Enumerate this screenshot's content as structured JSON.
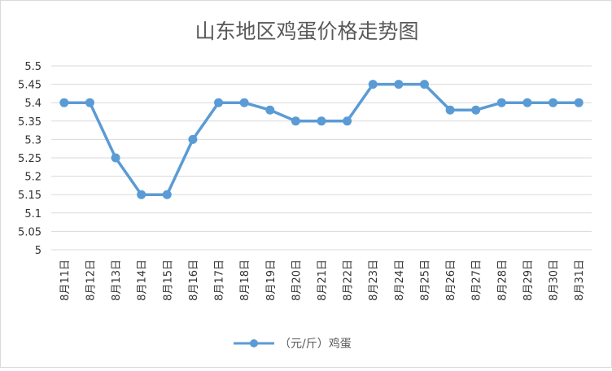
{
  "chart_data": {
    "type": "line",
    "title": "山东地区鸡蛋价格走势图",
    "categories": [
      "8月11日",
      "8月12日",
      "8月13日",
      "8月14日",
      "8月15日",
      "8月16日",
      "8月17日",
      "8月18日",
      "8月19日",
      "8月20日",
      "8月21日",
      "8月22日",
      "8月23日",
      "8月24日",
      "8月25日",
      "8月26日",
      "8月27日",
      "8月28日",
      "8月29日",
      "8月30日",
      "8月31日"
    ],
    "series": [
      {
        "name": "（元/斤）鸡蛋",
        "values": [
          5.4,
          5.4,
          5.25,
          5.15,
          5.15,
          5.3,
          5.4,
          5.4,
          5.38,
          5.35,
          5.35,
          5.35,
          5.45,
          5.45,
          5.45,
          5.38,
          5.38,
          5.4,
          5.4,
          5.4,
          5.4
        ],
        "color": "#5b9bd5"
      }
    ],
    "ylim": [
      5,
      5.5
    ],
    "yticks": [
      "5",
      "5.05",
      "5.1",
      "5.15",
      "5.2",
      "5.25",
      "5.3",
      "5.35",
      "5.4",
      "5.45",
      "5.5"
    ],
    "grid": true,
    "legend": "bottom-center"
  }
}
